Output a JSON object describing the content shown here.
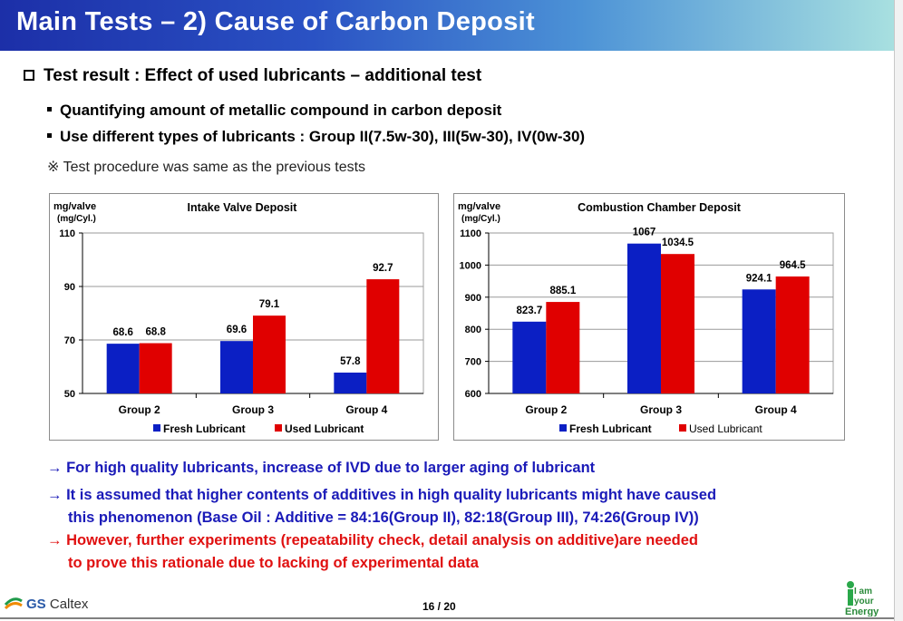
{
  "slide": {
    "title": "Main Tests – 2) Cause of Carbon Deposit",
    "heading": "Test result : Effect of used lubricants – additional test",
    "bullets": [
      "Quantifying amount of metallic compound in carbon deposit",
      "Use different types of lubricants : Group II(7.5w-30), III(5w-30), IV(0w-30)"
    ],
    "note": "※ Test procedure was same as the previous tests",
    "conclusions": [
      "→ For high quality lubricants, increase of IVD due to larger aging of lubricant",
      "→ It is assumed that higher contents of additives in high quality lubricants might have caused",
      "this phenomenon (Base Oil : Additive = 84:16(Group II), 82:18(Group III), 74:26(Group IV))",
      "→ However, further experiments (repeatability check, detail analysis on additive)are needed",
      "to prove this rationale due to lacking of experimental data"
    ],
    "page": "16 / 20",
    "company": {
      "gs": "GS",
      "rest": " Caltex"
    },
    "slogan": [
      "I am",
      "your",
      "Energy"
    ]
  },
  "colors": {
    "fresh": "#0b1fc4",
    "used": "#e00000",
    "conclusion_blue": "#1a1ab8",
    "conclusion_red": "#e01010"
  },
  "chart_data": [
    {
      "type": "bar",
      "title": "Intake Valve Deposit",
      "ylabel": "mg/valve",
      "yunit": "(mg/Cyl.)",
      "categories": [
        "Group 2",
        "Group 3",
        "Group 4"
      ],
      "series": [
        {
          "name": "Fresh Lubricant",
          "values": [
            68.6,
            69.6,
            57.8
          ]
        },
        {
          "name": "Used Lubricant",
          "values": [
            68.8,
            79.1,
            92.7
          ]
        }
      ],
      "ylim": [
        50,
        110
      ],
      "yticks": [
        50,
        70,
        90,
        110
      ],
      "grid": true,
      "legend": "bottom"
    },
    {
      "type": "bar",
      "title": "Combustion Chamber Deposit",
      "ylabel": "mg/valve",
      "yunit": "(mg/Cyl.)",
      "categories": [
        "Group 2",
        "Group 3",
        "Group 4"
      ],
      "series": [
        {
          "name": "Fresh Lubricant",
          "values": [
            823.7,
            1067,
            924.1
          ]
        },
        {
          "name": "Used Lubricant",
          "values": [
            885.1,
            1034.5,
            964.5
          ]
        }
      ],
      "ylim": [
        600,
        1100
      ],
      "yticks": [
        600,
        700,
        800,
        900,
        1000,
        1100
      ],
      "grid": true,
      "legend": "bottom"
    }
  ]
}
